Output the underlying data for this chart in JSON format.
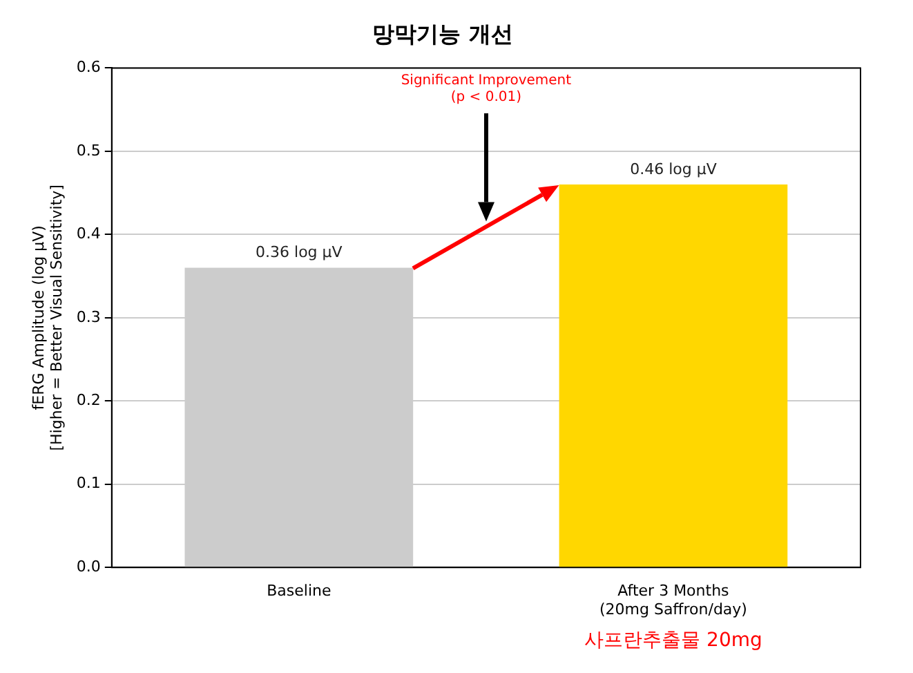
{
  "chart_data": {
    "type": "bar",
    "title": "망막기능 개선",
    "ylabel": "fERG Amplitude (log µV)\n[Higher = Better Visual Sensitivity]",
    "categories": [
      "Baseline",
      "After 3 Months\n(20mg Saffron/day)"
    ],
    "values": [
      0.36,
      0.46
    ],
    "colors": [
      "#cccccc",
      "#ffd700"
    ],
    "value_labels": [
      "0.36 log µV",
      "0.46 log µV"
    ],
    "ylim": [
      0,
      0.6
    ],
    "yticks": [
      {
        "value": 0,
        "label": "0.0"
      },
      0.1,
      0.2,
      0.3,
      0.4,
      0.5,
      0.6
    ],
    "grid": "y",
    "annotations": [
      "Significant Improvement\n(p < 0.01)",
      "사프란추출물 20mg"
    ]
  }
}
